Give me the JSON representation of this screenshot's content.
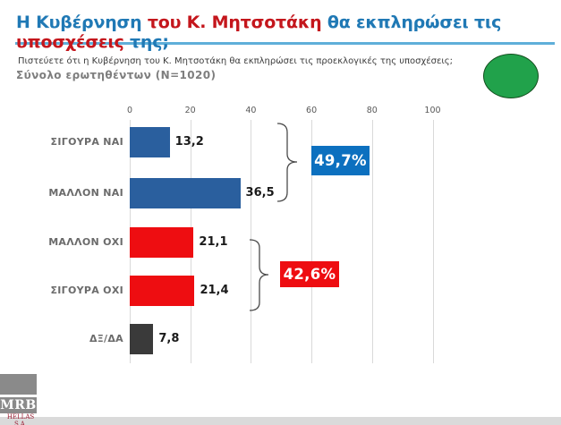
{
  "title": {
    "segments": [
      {
        "text": "Η Κυβέρνηση ",
        "color": "#2079B5"
      },
      {
        "text": "του Κ. Μητσοτάκη ",
        "color": "#C4161C"
      },
      {
        "text": "θα εκπληρώσει τις ",
        "color": "#2079B5"
      },
      {
        "text": "υποσχέσεις ",
        "color": "#C4161C"
      },
      {
        "text": "της;",
        "color": "#2079B5"
      }
    ]
  },
  "subtitle": "Πιστεύετε ότι η Κυβέρνηση του Κ. Μητσοτάκη θα εκπληρώσει τις προεκλογικές της υποσχέσεις;",
  "sample_line": "Σύνολο ερωτηθέντων (Ν=1020)",
  "chart_data": {
    "type": "bar",
    "orientation": "horizontal",
    "categories": [
      "ΣΙΓΟΥΡΑ ΝΑΙ",
      "ΜΑΛΛΟΝ ΝΑΙ",
      "ΜΑΛΛΟΝ ΟΧΙ",
      "ΣΙΓΟΥΡΑ ΟΧΙ",
      "ΔΞ/ΔΑ"
    ],
    "values": [
      13.2,
      36.5,
      21.1,
      21.4,
      7.8
    ],
    "value_labels": [
      "13,2",
      "36,5",
      "21,1",
      "21,4",
      "7,8"
    ],
    "bar_colors": [
      "#2A5F9E",
      "#2A5F9E",
      "#EE0D11",
      "#EE0D11",
      "#3A3A3A"
    ],
    "xlim": [
      0,
      100
    ],
    "x_ticks": [
      "0",
      "20",
      "40",
      "60",
      "80",
      "100"
    ],
    "grid": true,
    "axis_position": "top",
    "aggregates": [
      {
        "label": "49,7%",
        "color": "#0C70BF",
        "covers": [
          "ΣΙΓΟΥΡΑ ΝΑΙ",
          "ΜΑΛΛΟΝ ΝΑΙ"
        ]
      },
      {
        "label": "42,6%",
        "color": "#EE0D11",
        "covers": [
          "ΜΑΛΛΟΝ ΟΧΙ",
          "ΣΙΓΟΥΡΑ ΟΧΙ"
        ]
      }
    ]
  },
  "logo": {
    "name": "MRB",
    "subtitle": "HELLAS S.A."
  },
  "decor": {
    "green_circle_color": "#21A24B",
    "title_rule_color": "#5FAFD9"
  }
}
